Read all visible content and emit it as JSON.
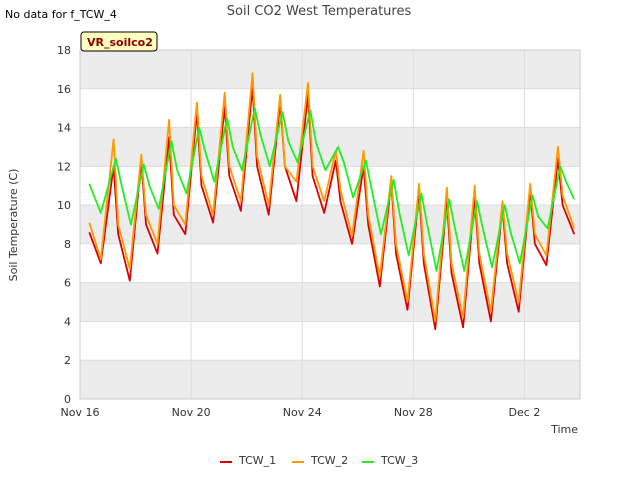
{
  "notice": "No data for f_TCW_4",
  "badge": "VR_soilco2",
  "chart_data": {
    "type": "line",
    "title": "Soil CO2 West Temperatures",
    "xlabel": "Time",
    "ylabel": "Soil Temperature (C)",
    "ylim": [
      0,
      18
    ],
    "yticks": [
      0,
      2,
      4,
      6,
      8,
      10,
      12,
      14,
      16,
      18
    ],
    "xlim": [
      "2024-11-16",
      "2024-12-04"
    ],
    "xticks": [
      {
        "date": "2024-11-16",
        "label": "Nov 16"
      },
      {
        "date": "2024-11-20",
        "label": "Nov 20"
      },
      {
        "date": "2024-11-24",
        "label": "Nov 24"
      },
      {
        "date": "2024-11-28",
        "label": "Nov 28"
      },
      {
        "date": "2024-12-02",
        "label": "Dec 2"
      }
    ],
    "grid": true,
    "legend": "bottom",
    "series": [
      {
        "name": "TCW_1",
        "color": "#dd0000",
        "points": [
          [
            "2024-11-16 08:00",
            8.6
          ],
          [
            "2024-11-16 18:00",
            7.0
          ],
          [
            "2024-11-17 05:00",
            12.0
          ],
          [
            "2024-11-17 09:00",
            8.5
          ],
          [
            "2024-11-17 19:00",
            6.1
          ],
          [
            "2024-11-18 05:00",
            12.3
          ],
          [
            "2024-11-18 09:00",
            9.0
          ],
          [
            "2024-11-18 19:00",
            7.5
          ],
          [
            "2024-11-19 05:00",
            13.5
          ],
          [
            "2024-11-19 09:00",
            9.5
          ],
          [
            "2024-11-19 19:00",
            8.5
          ],
          [
            "2024-11-20 05:00",
            14.8
          ],
          [
            "2024-11-20 09:00",
            11.0
          ],
          [
            "2024-11-20 19:00",
            9.1
          ],
          [
            "2024-11-21 05:00",
            15.1
          ],
          [
            "2024-11-21 09:00",
            11.5
          ],
          [
            "2024-11-21 19:00",
            9.7
          ],
          [
            "2024-11-22 05:00",
            16.1
          ],
          [
            "2024-11-22 09:00",
            12.0
          ],
          [
            "2024-11-22 19:00",
            9.5
          ],
          [
            "2024-11-23 05:00",
            15.3
          ],
          [
            "2024-11-23 09:00",
            12.0
          ],
          [
            "2024-11-23 19:00",
            10.2
          ],
          [
            "2024-11-24 05:00",
            15.7
          ],
          [
            "2024-11-24 09:00",
            11.5
          ],
          [
            "2024-11-24 19:00",
            9.6
          ],
          [
            "2024-11-25 05:00",
            12.3
          ],
          [
            "2024-11-25 09:00",
            10.2
          ],
          [
            "2024-11-25 19:00",
            8.0
          ],
          [
            "2024-11-26 05:00",
            12.0
          ],
          [
            "2024-11-26 09:00",
            9.0
          ],
          [
            "2024-11-26 19:00",
            5.8
          ],
          [
            "2024-11-27 05:00",
            11.2
          ],
          [
            "2024-11-27 09:00",
            7.5
          ],
          [
            "2024-11-27 19:00",
            4.6
          ],
          [
            "2024-11-28 05:00",
            10.7
          ],
          [
            "2024-11-28 09:00",
            7.0
          ],
          [
            "2024-11-28 19:00",
            3.6
          ],
          [
            "2024-11-29 05:00",
            10.3
          ],
          [
            "2024-11-29 09:00",
            6.5
          ],
          [
            "2024-11-29 19:00",
            3.7
          ],
          [
            "2024-11-30 05:00",
            10.5
          ],
          [
            "2024-11-30 09:00",
            7.0
          ],
          [
            "2024-11-30 19:00",
            4.0
          ],
          [
            "2024-12-01 05:00",
            9.9
          ],
          [
            "2024-12-01 09:00",
            7.0
          ],
          [
            "2024-12-01 19:00",
            4.5
          ],
          [
            "2024-12-02 05:00",
            10.8
          ],
          [
            "2024-12-02 09:00",
            8.0
          ],
          [
            "2024-12-02 19:00",
            6.9
          ],
          [
            "2024-12-03 05:00",
            12.4
          ],
          [
            "2024-12-03 09:00",
            10.0
          ],
          [
            "2024-12-03 19:00",
            8.5
          ]
        ]
      },
      {
        "name": "TCW_2",
        "color": "#ff9900",
        "points": [
          [
            "2024-11-16 08:00",
            9.1
          ],
          [
            "2024-11-16 18:00",
            7.2
          ],
          [
            "2024-11-17 05:00",
            13.4
          ],
          [
            "2024-11-17 09:00",
            9.0
          ],
          [
            "2024-11-17 19:00",
            6.7
          ],
          [
            "2024-11-18 05:00",
            12.6
          ],
          [
            "2024-11-18 09:00",
            9.5
          ],
          [
            "2024-11-18 19:00",
            8.0
          ],
          [
            "2024-11-19 05:00",
            14.4
          ],
          [
            "2024-11-19 09:00",
            10.0
          ],
          [
            "2024-11-19 19:00",
            9.0
          ],
          [
            "2024-11-20 05:00",
            15.3
          ],
          [
            "2024-11-20 09:00",
            11.5
          ],
          [
            "2024-11-20 19:00",
            9.5
          ],
          [
            "2024-11-21 05:00",
            15.8
          ],
          [
            "2024-11-21 09:00",
            12.0
          ],
          [
            "2024-11-21 19:00",
            10.2
          ],
          [
            "2024-11-22 05:00",
            16.8
          ],
          [
            "2024-11-22 09:00",
            12.5
          ],
          [
            "2024-11-22 19:00",
            10.0
          ],
          [
            "2024-11-23 05:00",
            15.7
          ],
          [
            "2024-11-23 09:00",
            12.0
          ],
          [
            "2024-11-23 19:00",
            11.2
          ],
          [
            "2024-11-24 05:00",
            16.3
          ],
          [
            "2024-11-24 09:00",
            12.0
          ],
          [
            "2024-11-24 19:00",
            10.2
          ],
          [
            "2024-11-25 05:00",
            12.8
          ],
          [
            "2024-11-25 09:00",
            10.8
          ],
          [
            "2024-11-25 19:00",
            8.4
          ],
          [
            "2024-11-26 05:00",
            12.8
          ],
          [
            "2024-11-26 09:00",
            9.5
          ],
          [
            "2024-11-26 19:00",
            6.3
          ],
          [
            "2024-11-27 05:00",
            11.5
          ],
          [
            "2024-11-27 09:00",
            8.0
          ],
          [
            "2024-11-27 19:00",
            5.0
          ],
          [
            "2024-11-28 05:00",
            11.1
          ],
          [
            "2024-11-28 09:00",
            7.5
          ],
          [
            "2024-11-28 19:00",
            4.0
          ],
          [
            "2024-11-29 05:00",
            10.9
          ],
          [
            "2024-11-29 09:00",
            7.0
          ],
          [
            "2024-11-29 19:00",
            4.2
          ],
          [
            "2024-11-30 05:00",
            11.0
          ],
          [
            "2024-11-30 09:00",
            7.5
          ],
          [
            "2024-11-30 19:00",
            4.5
          ],
          [
            "2024-12-01 05:00",
            10.2
          ],
          [
            "2024-12-01 09:00",
            7.5
          ],
          [
            "2024-12-01 19:00",
            5.0
          ],
          [
            "2024-12-02 05:00",
            11.1
          ],
          [
            "2024-12-02 09:00",
            8.5
          ],
          [
            "2024-12-02 19:00",
            7.4
          ],
          [
            "2024-12-03 05:00",
            13.0
          ],
          [
            "2024-12-03 09:00",
            10.5
          ],
          [
            "2024-12-03 19:00",
            8.8
          ]
        ]
      },
      {
        "name": "TCW_3",
        "color": "#22ee22",
        "points": [
          [
            "2024-11-16 08:00",
            11.1
          ],
          [
            "2024-11-16 18:00",
            9.6
          ],
          [
            "2024-11-17 07:00",
            12.4
          ],
          [
            "2024-11-17 12:00",
            11.0
          ],
          [
            "2024-11-17 20:00",
            9.0
          ],
          [
            "2024-11-18 07:00",
            12.1
          ],
          [
            "2024-11-18 12:00",
            11.0
          ],
          [
            "2024-11-18 20:00",
            9.8
          ],
          [
            "2024-11-19 07:00",
            13.3
          ],
          [
            "2024-11-19 12:00",
            11.8
          ],
          [
            "2024-11-19 20:00",
            10.6
          ],
          [
            "2024-11-20 07:00",
            14.0
          ],
          [
            "2024-11-20 12:00",
            12.8
          ],
          [
            "2024-11-20 20:00",
            11.2
          ],
          [
            "2024-11-21 07:00",
            14.5
          ],
          [
            "2024-11-21 12:00",
            13.0
          ],
          [
            "2024-11-21 20:00",
            11.8
          ],
          [
            "2024-11-22 07:00",
            15.0
          ],
          [
            "2024-11-22 12:00",
            13.6
          ],
          [
            "2024-11-22 20:00",
            12.0
          ],
          [
            "2024-11-23 07:00",
            14.8
          ],
          [
            "2024-11-23 12:00",
            13.3
          ],
          [
            "2024-11-23 20:00",
            12.2
          ],
          [
            "2024-11-24 07:00",
            14.9
          ],
          [
            "2024-11-24 12:00",
            13.2
          ],
          [
            "2024-11-24 20:00",
            11.8
          ],
          [
            "2024-11-25 07:00",
            13.0
          ],
          [
            "2024-11-25 12:00",
            12.2
          ],
          [
            "2024-11-25 20:00",
            10.4
          ],
          [
            "2024-11-26 07:00",
            12.3
          ],
          [
            "2024-11-26 12:00",
            10.8
          ],
          [
            "2024-11-26 20:00",
            8.5
          ],
          [
            "2024-11-27 07:00",
            11.3
          ],
          [
            "2024-11-27 12:00",
            9.6
          ],
          [
            "2024-11-27 20:00",
            7.4
          ],
          [
            "2024-11-28 07:00",
            10.6
          ],
          [
            "2024-11-28 12:00",
            9.0
          ],
          [
            "2024-11-28 20:00",
            6.6
          ],
          [
            "2024-11-29 07:00",
            10.3
          ],
          [
            "2024-11-29 12:00",
            8.8
          ],
          [
            "2024-11-29 20:00",
            6.6
          ],
          [
            "2024-11-30 07:00",
            10.2
          ],
          [
            "2024-11-30 12:00",
            8.8
          ],
          [
            "2024-11-30 20:00",
            6.8
          ],
          [
            "2024-12-01 07:00",
            10.0
          ],
          [
            "2024-12-01 12:00",
            8.6
          ],
          [
            "2024-12-01 20:00",
            7.0
          ],
          [
            "2024-12-02 07:00",
            10.5
          ],
          [
            "2024-12-02 12:00",
            9.4
          ],
          [
            "2024-12-02 20:00",
            8.8
          ],
          [
            "2024-12-03 07:00",
            12.0
          ],
          [
            "2024-12-03 12:00",
            11.2
          ],
          [
            "2024-12-03 19:00",
            10.3
          ]
        ]
      }
    ]
  },
  "colors": {
    "plot_band": "#ececec",
    "grid": "#dddddd",
    "badge_fill": "#ffffc0",
    "badge_text": "#8b0000"
  }
}
